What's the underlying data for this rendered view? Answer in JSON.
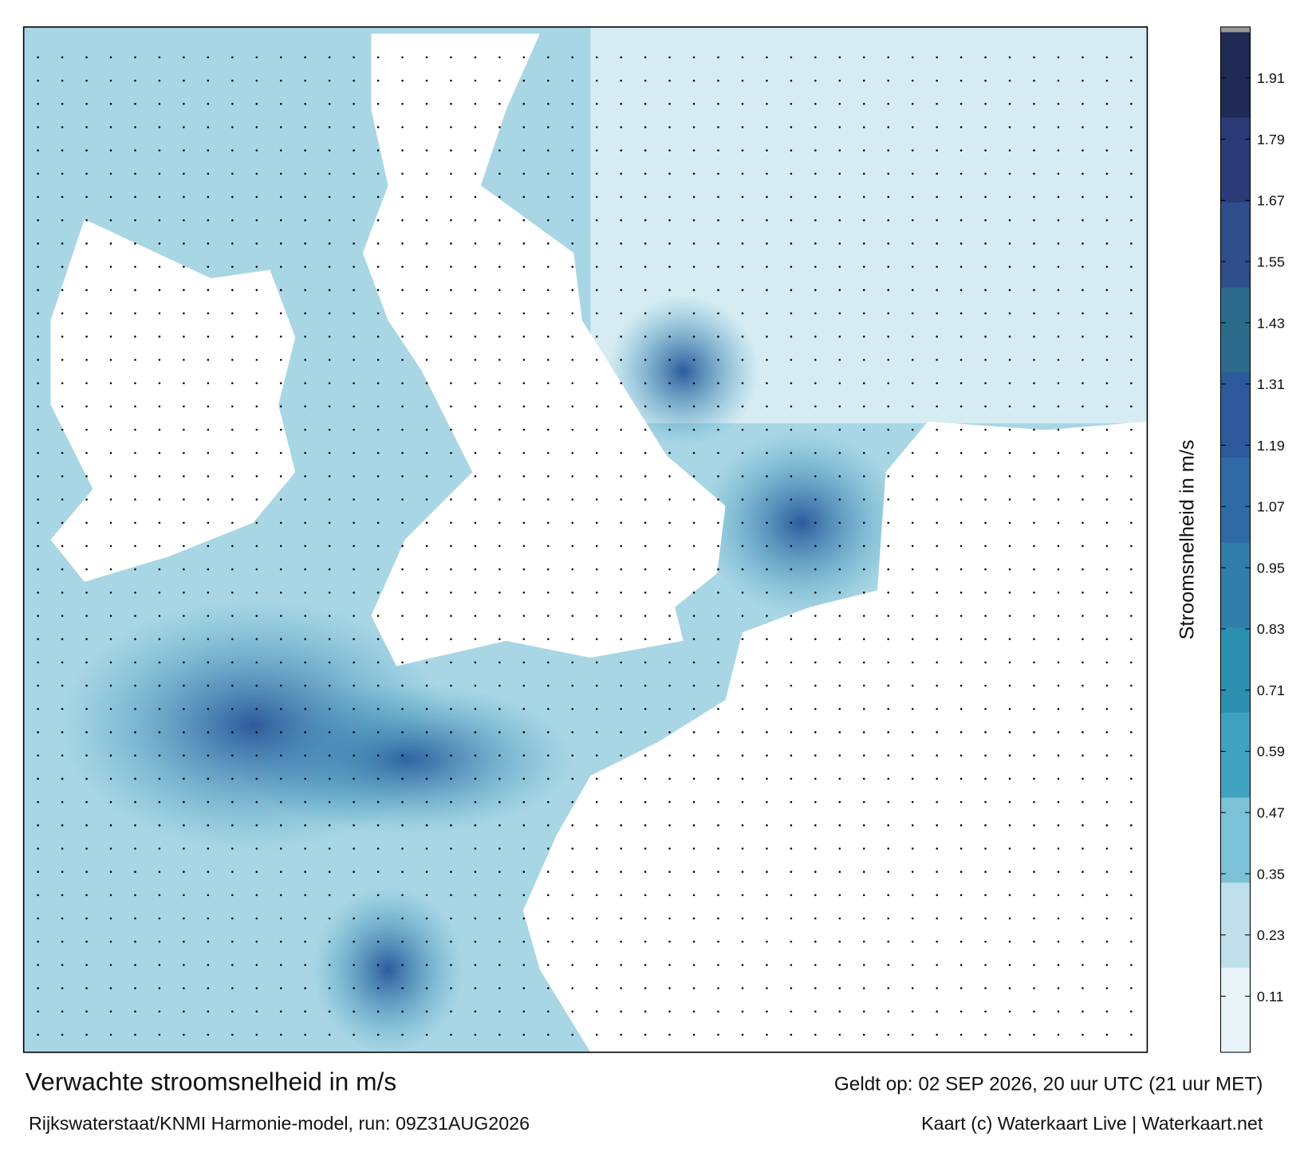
{
  "title": "Verwachte stroomsnelheid in m/s",
  "subtitle": "Rijkswaterstaat/KNMI Harmonie-model, run: 09Z31AUG2026",
  "valid_time": "Geldt op: 02 SEP 2026, 20 uur UTC (21 uur MET)",
  "credit": "Kaart (c) Waterkaart Live | Waterkaart.net",
  "colorbar": {
    "label": "Stroomsnelheid in m/s",
    "lim": [
      0,
      2
    ],
    "ticks": [
      0.11,
      0.23,
      0.35,
      0.47,
      0.59,
      0.71,
      0.83,
      0.95,
      1.07,
      1.19,
      1.31,
      1.43,
      1.55,
      1.67,
      1.79,
      1.91
    ],
    "colors": [
      "#e8f3f7",
      "#bfe0ea",
      "#7cc2d6",
      "#3fa3c0",
      "#2b8fb0",
      "#2f7eab",
      "#2f6aa6",
      "#2d5a9c",
      "#2b6a8a",
      "#2e4e8c",
      "#2a3b78",
      "#1f2a55"
    ]
  }
}
